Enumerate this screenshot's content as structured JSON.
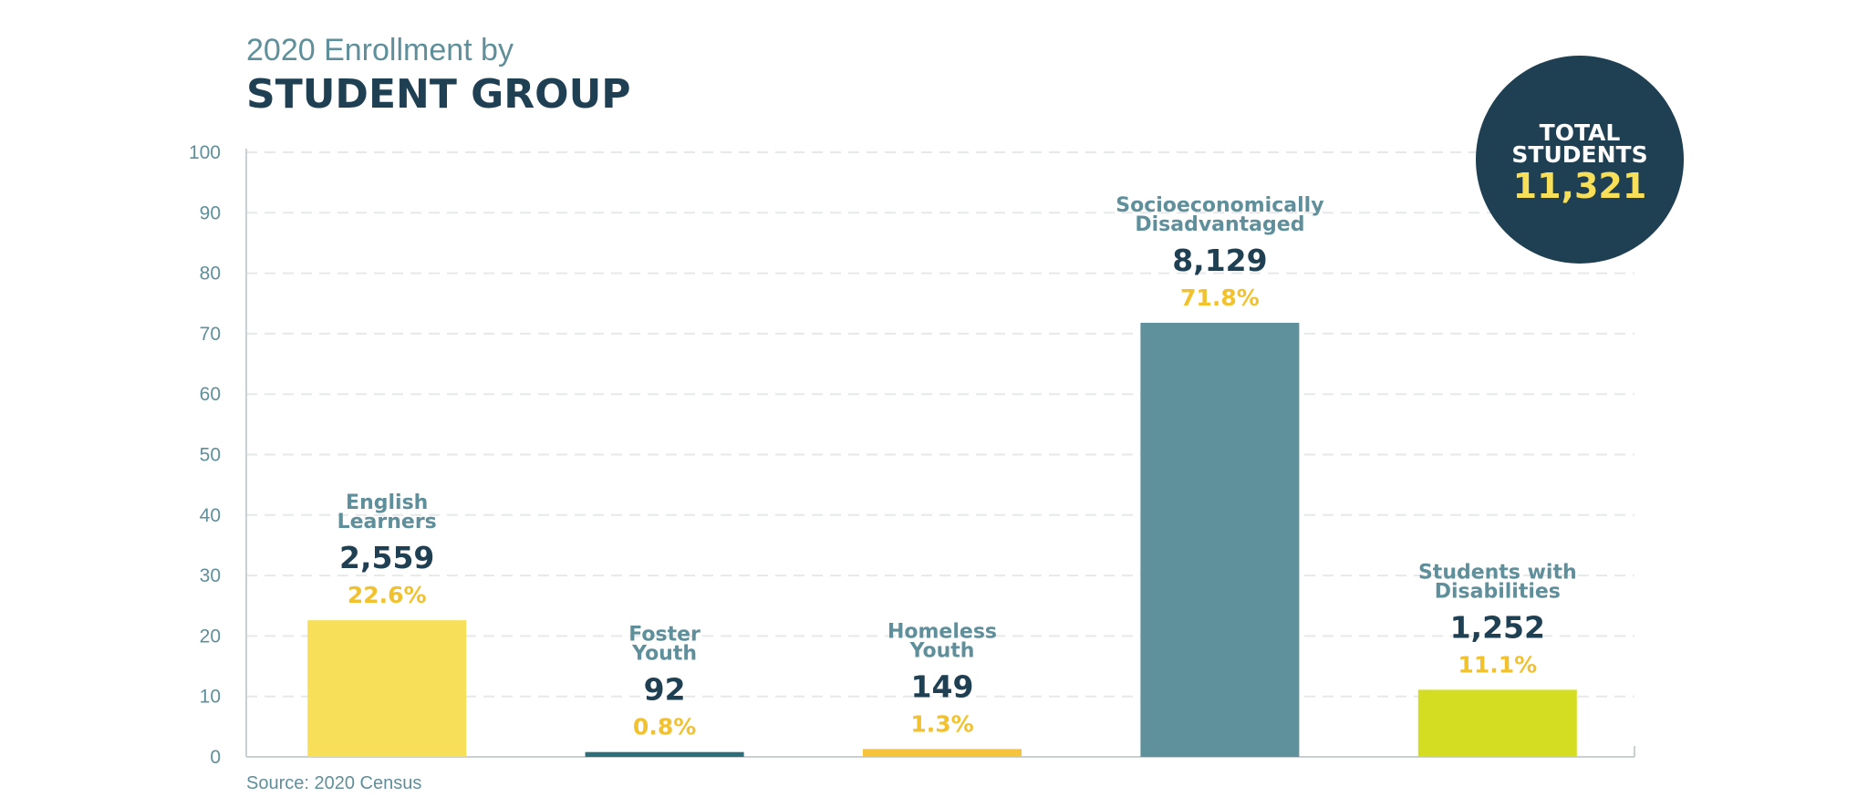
{
  "header": {
    "subtitle": "2020 Enrollment by",
    "title": "STUDENT GROUP"
  },
  "badge": {
    "title_line1": "TOTAL",
    "title_line2": "STUDENTS",
    "value": "11,321",
    "color": "#1f3f52",
    "value_color": "#f7df5a"
  },
  "footer": {
    "source": "Source: 2020 Census"
  },
  "chart_data": {
    "type": "bar",
    "ylim": [
      0,
      100
    ],
    "yticks": [
      0,
      10,
      20,
      30,
      40,
      50,
      60,
      70,
      80,
      90,
      100
    ],
    "grid": true,
    "categories": [
      [
        "English",
        "Learners"
      ],
      [
        "Foster",
        "Youth"
      ],
      [
        "Homeless",
        "Youth"
      ],
      [
        "Socioeconomically",
        "Disadvantaged"
      ],
      [
        "Students with",
        "Disabilities"
      ]
    ],
    "values": [
      22.6,
      0.8,
      1.3,
      71.8,
      11.1
    ],
    "value_labels": [
      "22.6%",
      "0.8%",
      "1.3%",
      "71.8%",
      "11.1%"
    ],
    "counts": [
      "2,559",
      "92",
      "149",
      "8,129",
      "1,252"
    ],
    "colors": [
      "#f7df5a",
      "#2e6e78",
      "#f5c43c",
      "#5f919c",
      "#d4dd22"
    ]
  }
}
